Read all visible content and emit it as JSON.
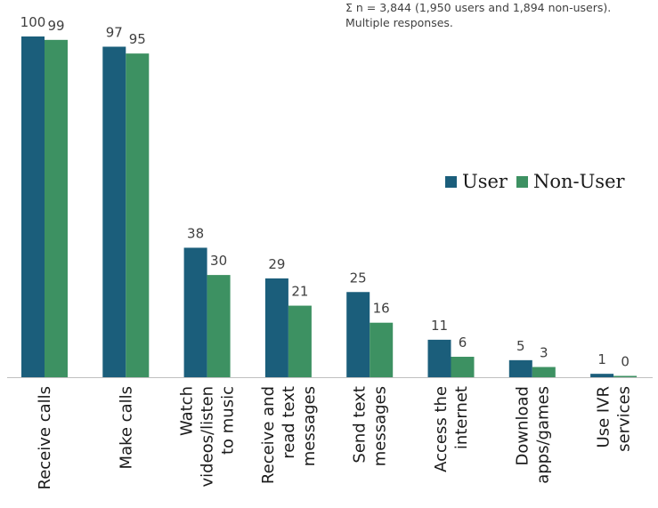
{
  "note": "Σ n = 3,844 (1,950 users and 1,894 non-users). Multiple responses.",
  "colors": {
    "user": "#1b5e7b",
    "non_user": "#3d9162",
    "axis": "#bfbfbf",
    "label": "#404040"
  },
  "chart_data": {
    "type": "bar",
    "categories": [
      [
        "Receive calls"
      ],
      [
        "Make calls"
      ],
      [
        "Watch",
        "videos/listen",
        "to music"
      ],
      [
        "Receive and",
        "read text",
        "messages"
      ],
      [
        "Send text",
        "messages"
      ],
      [
        "Access the",
        "internet"
      ],
      [
        "Download",
        "apps/games"
      ],
      [
        "Use IVR",
        "services"
      ]
    ],
    "series": [
      {
        "name": "User",
        "values": [
          100,
          97,
          38,
          29,
          25,
          11,
          5,
          1
        ]
      },
      {
        "name": "Non-User",
        "values": [
          99,
          95,
          30,
          21,
          16,
          6,
          3,
          0
        ]
      }
    ],
    "ylim": [
      0,
      100
    ],
    "legend_position": "right",
    "grid": false
  }
}
